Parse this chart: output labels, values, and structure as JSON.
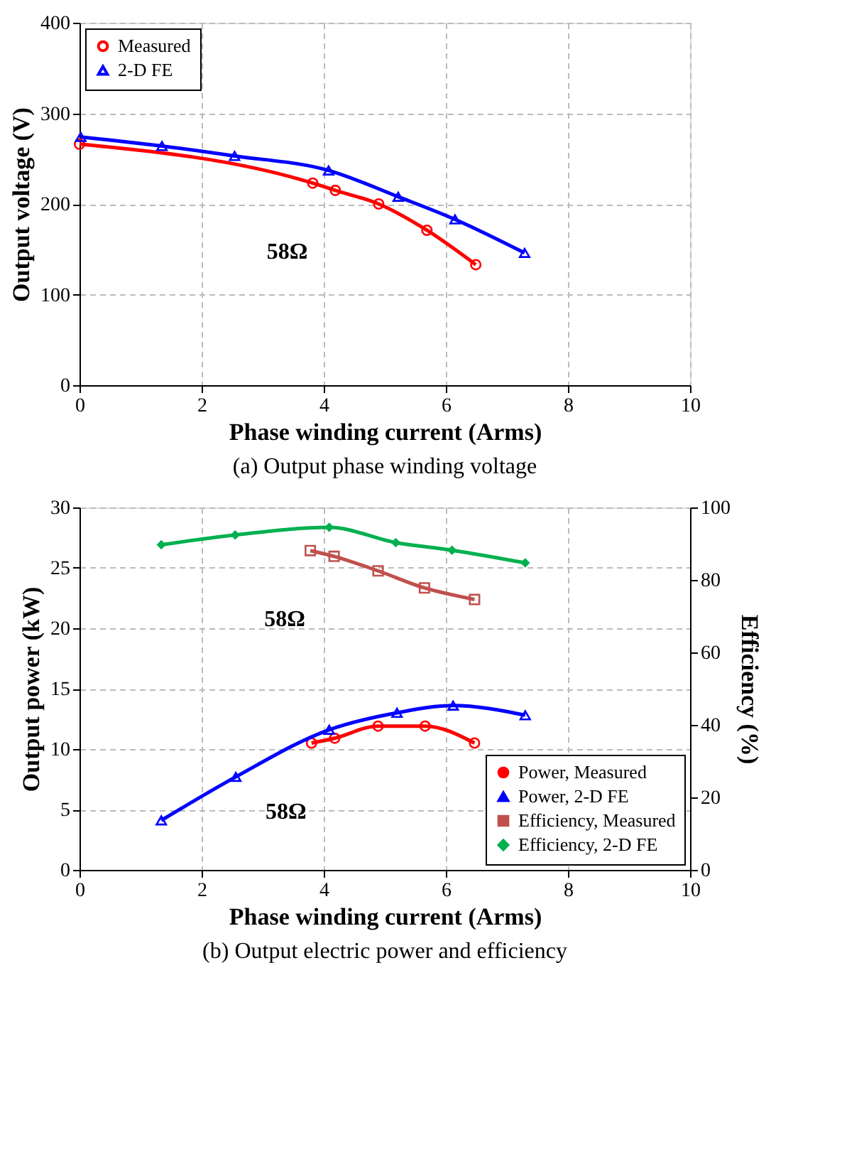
{
  "chart_data": [
    {
      "type": "line",
      "title": "(a) Output phase winding voltage",
      "xlabel": "Phase winding current (Arms)",
      "ylabel": "Output voltage (V)",
      "xlim": [
        0,
        10
      ],
      "xticks": [
        0,
        2,
        4,
        6,
        8,
        10
      ],
      "ylim": [
        0,
        400
      ],
      "yticks": [
        0,
        100,
        200,
        300,
        400
      ],
      "grid": true,
      "legend": "top left",
      "series": [
        {
          "name": "Measured",
          "color": "#ff0000",
          "marker": "circle",
          "x": [
            0,
            3.82,
            4.19,
            4.9,
            5.69,
            6.49
          ],
          "values": [
            266,
            223,
            215,
            200,
            171,
            133
          ]
        },
        {
          "name": "2-D FE",
          "color": "#0000ff",
          "marker": "triangle",
          "x": [
            0.02,
            1.35,
            2.54,
            4.08,
            5.22,
            6.15,
            7.29
          ],
          "values": [
            274,
            264,
            253,
            237,
            208,
            183,
            146
          ]
        }
      ],
      "annotations": [
        {
          "text": "58Ω",
          "x": 3.82,
          "y": 223
        }
      ]
    },
    {
      "type": "line",
      "title": "(b) Output electric power and efficiency",
      "xlabel": "Phase winding current (Arms)",
      "ylabel": "Output power (kW)",
      "y2label": "Efficiency (%)",
      "xlim": [
        0,
        10
      ],
      "xticks": [
        0,
        2,
        4,
        6,
        8,
        10
      ],
      "ylim": [
        0,
        30
      ],
      "yticks": [
        0,
        5,
        10,
        15,
        20,
        25,
        30
      ],
      "y2lim": [
        0,
        100
      ],
      "y2ticks": [
        0,
        20,
        40,
        60,
        80,
        100
      ],
      "grid": true,
      "legend": "bottom right",
      "series": [
        {
          "name": "Power, Measured",
          "color": "#ff0000",
          "marker": "circle",
          "x": [
            3.8,
            4.18,
            4.89,
            5.66,
            6.47
          ],
          "values": [
            10.5,
            10.9,
            11.9,
            11.9,
            10.5
          ]
        },
        {
          "name": "Power, 2-D FE",
          "color": "#0000ff",
          "marker": "triangle",
          "x": [
            1.34,
            2.56,
            4.09,
            5.2,
            6.12,
            7.3
          ],
          "values": [
            4.1,
            7.7,
            11.6,
            13.0,
            13.6,
            12.8
          ]
        },
        {
          "name": "Efficiency, Measured",
          "color": "#c0504d",
          "marker": "square",
          "axis": "y2",
          "x": [
            3.78,
            4.17,
            4.89,
            5.65,
            6.47
          ],
          "values": [
            88.1,
            86.5,
            82.5,
            77.8,
            74.6
          ]
        },
        {
          "name": "Efficiency, 2-D FE",
          "color": "#00b050",
          "marker": "diamond",
          "axis": "y2",
          "x": [
            1.34,
            2.55,
            4.09,
            5.18,
            6.1,
            7.3
          ],
          "values": [
            89.7,
            92.4,
            94.5,
            90.3,
            88.2,
            84.7
          ]
        }
      ],
      "annotations": [
        {
          "text": "58Ω",
          "x": 3.78,
          "y": 26.4
        },
        {
          "text": "58Ω",
          "x": 3.8,
          "y": 10.5
        }
      ]
    }
  ]
}
